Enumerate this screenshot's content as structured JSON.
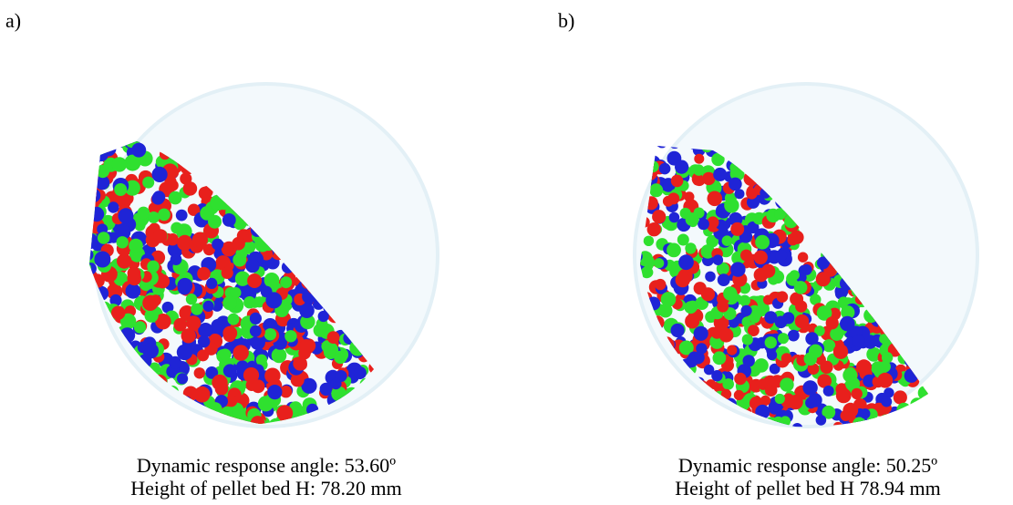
{
  "panels": [
    {
      "label": "a)",
      "caption_line1": "Dynamic response angle: 53.60º",
      "caption_line2": "Height of pellet bed H: 78.20 mm"
    },
    {
      "label": "b)",
      "caption_line1": "Dynamic response angle: 50.25º",
      "caption_line2": "Height of pellet bed H 78.94 mm"
    }
  ],
  "colors": {
    "drum_fill": "#f3f9fc",
    "drum_edge": "#e3f0f6",
    "pellet_red": "#e8201c",
    "pellet_green": "#2fe02f",
    "pellet_blue": "#1f24d6"
  }
}
